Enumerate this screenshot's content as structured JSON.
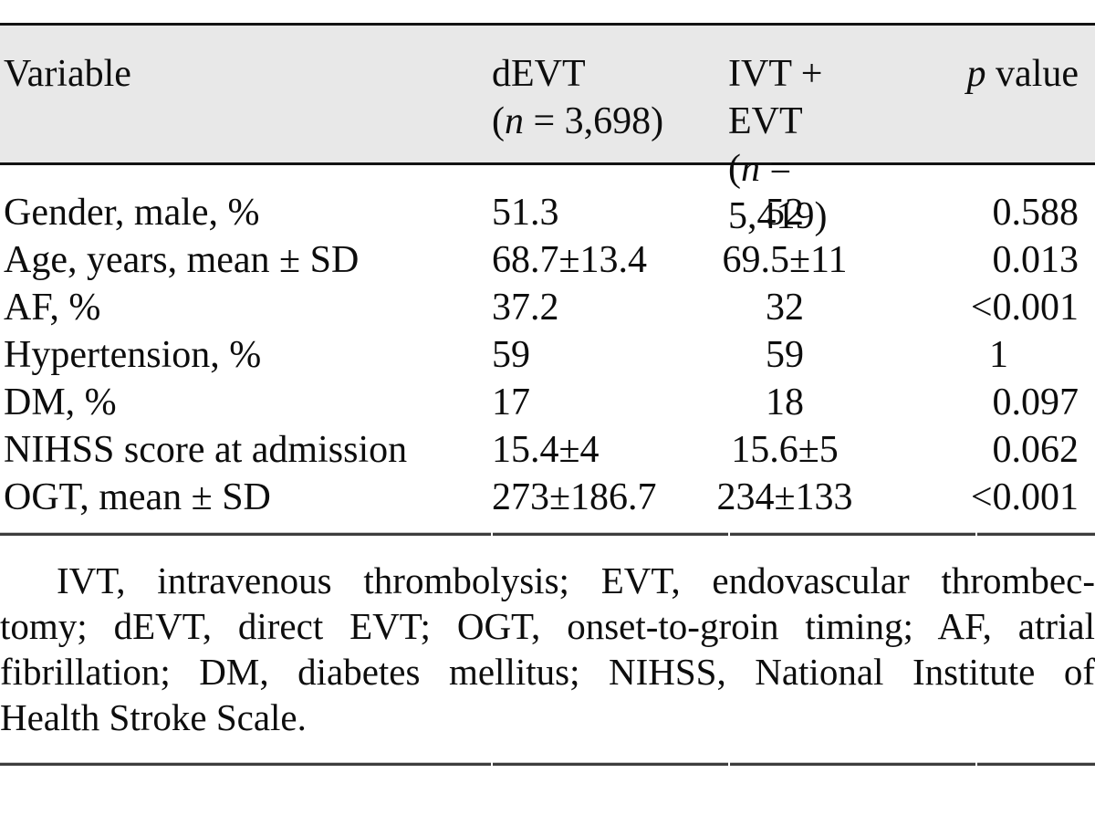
{
  "colors": {
    "header_bg": "#e8e8e8",
    "rule_black": "#131313",
    "rule_dark": "#3d3d3d",
    "text": "#0d0d0d"
  },
  "table": {
    "header": {
      "variable": "Variable",
      "devt_line1": "dEVT",
      "devt_n_open": "(",
      "devt_n_italic": "n",
      "devt_n_rest": " = 3,698)",
      "ivt_evt_line1": "IVT + EVT",
      "ivt_n_open": "(",
      "ivt_n_italic": "n",
      "ivt_n_rest": " = 5,419)",
      "p_italic": "p",
      "p_rest": " value"
    },
    "rows": [
      {
        "variable": "Gender, male, %",
        "devt": "51.3",
        "ivt_evt": "52",
        "p": "0.588"
      },
      {
        "variable": "Age, years, mean ± SD",
        "devt": "68.7±13.4",
        "ivt_evt": "69.5±11",
        "p": "0.013"
      },
      {
        "variable": "AF, %",
        "devt": "37.2",
        "ivt_evt": "32",
        "p": "<0.001"
      },
      {
        "variable": "Hypertension, %",
        "devt": "59",
        "ivt_evt": "59",
        "p": "1"
      },
      {
        "variable": "DM, %",
        "devt": "17",
        "ivt_evt": "18",
        "p": "0.097"
      },
      {
        "variable": "NIHSS score at admission",
        "devt": "15.4±4",
        "ivt_evt": "15.6±5",
        "p": "0.062"
      },
      {
        "variable": "OGT, mean ± SD",
        "devt": "273±186.7",
        "ivt_evt": "234±133",
        "p": "<0.001"
      }
    ]
  },
  "footnote": {
    "lines": [
      "IVT, intravenous thrombolysis; EVT, endovascular thrombec-",
      "tomy; dEVT, direct EVT; OGT, onset-to-groin timing; AF, atrial",
      "fibrillation; DM, diabetes mellitus; NIHSS, National Institute of",
      "Health Stroke Scale."
    ]
  }
}
